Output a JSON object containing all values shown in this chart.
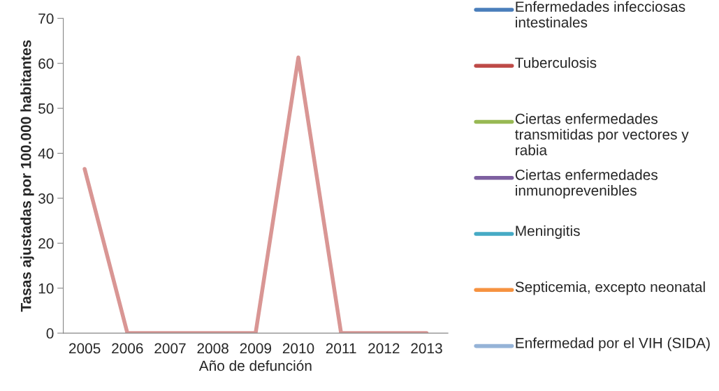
{
  "chart_data": {
    "type": "line",
    "xlabel": "Año de defunción",
    "ylabel": "Tasas ajustadas por 100.000 habitantes",
    "categories": [
      "2005",
      "2006",
      "2007",
      "2008",
      "2009",
      "2010",
      "2011",
      "2012",
      "2013"
    ],
    "series": [
      {
        "name": "Enfermedades infecciosas intestinales",
        "color": "#4a7ebb",
        "values": [
          null,
          null,
          null,
          null,
          null,
          null,
          null,
          null,
          null
        ]
      },
      {
        "name": "Tuberculosis",
        "color": "#be4b48",
        "values": [
          null,
          null,
          null,
          null,
          null,
          null,
          null,
          null,
          null
        ]
      },
      {
        "name": "Ciertas enfermedades transmitidas por vectores y rabia",
        "color": "#98b954",
        "values": [
          null,
          null,
          null,
          null,
          null,
          null,
          null,
          null,
          null
        ]
      },
      {
        "name": "Ciertas enfermedades inmunoprevenibles",
        "color": "#7d60a0",
        "values": [
          null,
          null,
          null,
          null,
          null,
          null,
          null,
          null,
          null
        ]
      },
      {
        "name": "Meningitis",
        "color": "#46aac5",
        "values": [
          null,
          null,
          null,
          null,
          null,
          null,
          null,
          null,
          null
        ]
      },
      {
        "name": "Septicemia, excepto neonatal",
        "color": "#f69240",
        "values": [
          null,
          null,
          null,
          null,
          null,
          null,
          null,
          null,
          null
        ]
      },
      {
        "name": "Enfermedad por el VIH (SIDA)",
        "color": "#95b3d7",
        "values": [
          null,
          null,
          null,
          null,
          null,
          null,
          null,
          null,
          null
        ]
      },
      {
        "color": "#d99694",
        "values": [
          36.5,
          0,
          0,
          0,
          0,
          61.3,
          0,
          0,
          0
        ]
      }
    ],
    "ylim": [
      0,
      70
    ],
    "yticks": [
      0,
      10,
      20,
      30,
      40,
      50,
      60,
      70
    ],
    "grid": false,
    "legend": "right",
    "marker": "none",
    "line_style": "solid"
  }
}
